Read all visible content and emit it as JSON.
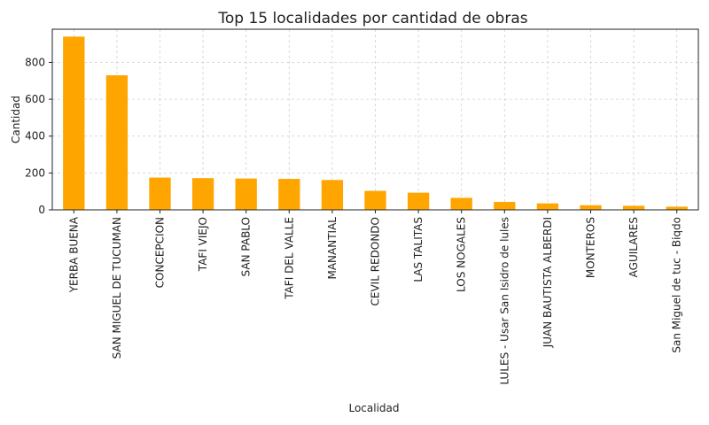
{
  "chart_data": {
    "type": "bar",
    "title": "Top 15 localidades por cantidad de obras",
    "xlabel": "Localidad",
    "ylabel": "Cantidad",
    "ylim": [
      0,
      980
    ],
    "yticks": [
      0,
      200,
      400,
      600,
      800
    ],
    "grid": true,
    "bar_color": "#FFA500",
    "categories": [
      "YERBA BUENA",
      "SAN MIGUEL DE TUCUMAN",
      "CONCEPCION",
      "TAFI VIEJO",
      "SAN PABLO",
      "TAFI DEL VALLE",
      "MANANTIAL",
      "CEVIL REDONDO",
      "LAS TALITAS",
      "LOS NOGALES",
      "LULES - Usar San Isidro de lules",
      "JUAN BAUTISTA ALBERDI",
      "MONTEROS",
      "AGUILARES",
      "San Miguel de tuc - Biqdo"
    ],
    "values": [
      940,
      730,
      175,
      172,
      170,
      168,
      162,
      103,
      93,
      65,
      43,
      35,
      25,
      22,
      17
    ]
  }
}
